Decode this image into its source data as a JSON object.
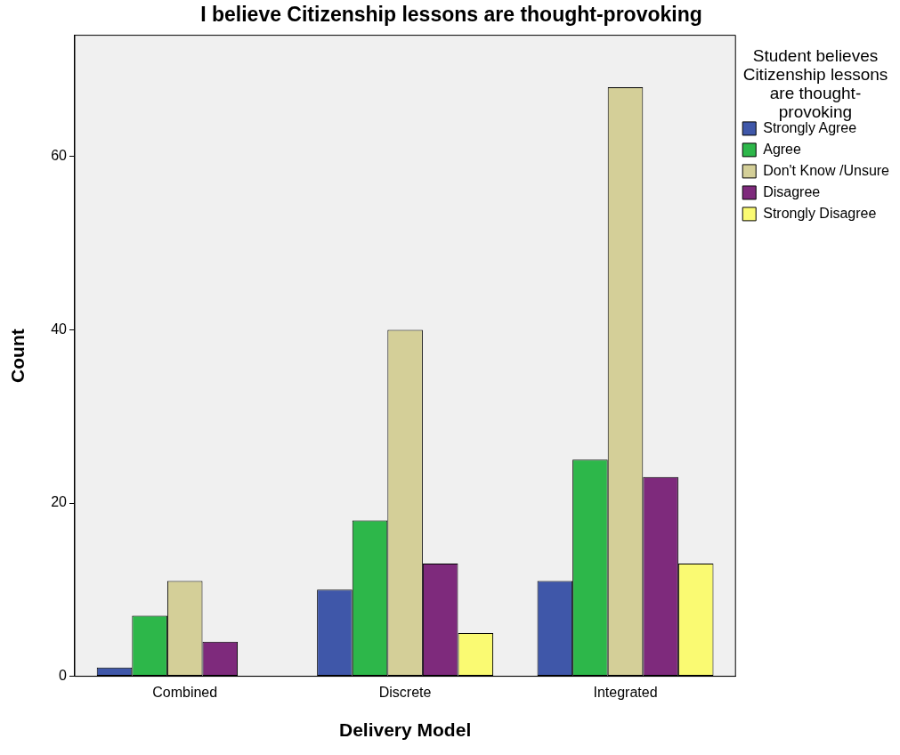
{
  "chart_data": {
    "type": "bar",
    "title": "I believe Citizenship lessons are thought-provoking",
    "xlabel": "Delivery Model",
    "ylabel": "Count",
    "legend_title": "Student believes Citizenship lessons are thought-provoking",
    "legend": "right",
    "grid": false,
    "categories": [
      "Combined",
      "Discrete",
      "Integrated"
    ],
    "ylim": [
      0,
      74
    ],
    "yticks": [
      0,
      20,
      40,
      60
    ],
    "series": [
      {
        "name": "Strongly Agree",
        "color": "#3f57a9",
        "values": [
          1,
          10,
          11
        ]
      },
      {
        "name": "Agree",
        "color": "#2db74a",
        "values": [
          7,
          18,
          25
        ]
      },
      {
        "name": "Don't Know /Unsure",
        "color": "#d4cf98",
        "values": [
          11,
          40,
          68
        ]
      },
      {
        "name": "Disagree",
        "color": "#7e2a7c",
        "values": [
          4,
          13,
          23
        ]
      },
      {
        "name": "Strongly Disagree",
        "color": "#fafa72",
        "values": [
          null,
          5,
          13
        ]
      }
    ]
  }
}
